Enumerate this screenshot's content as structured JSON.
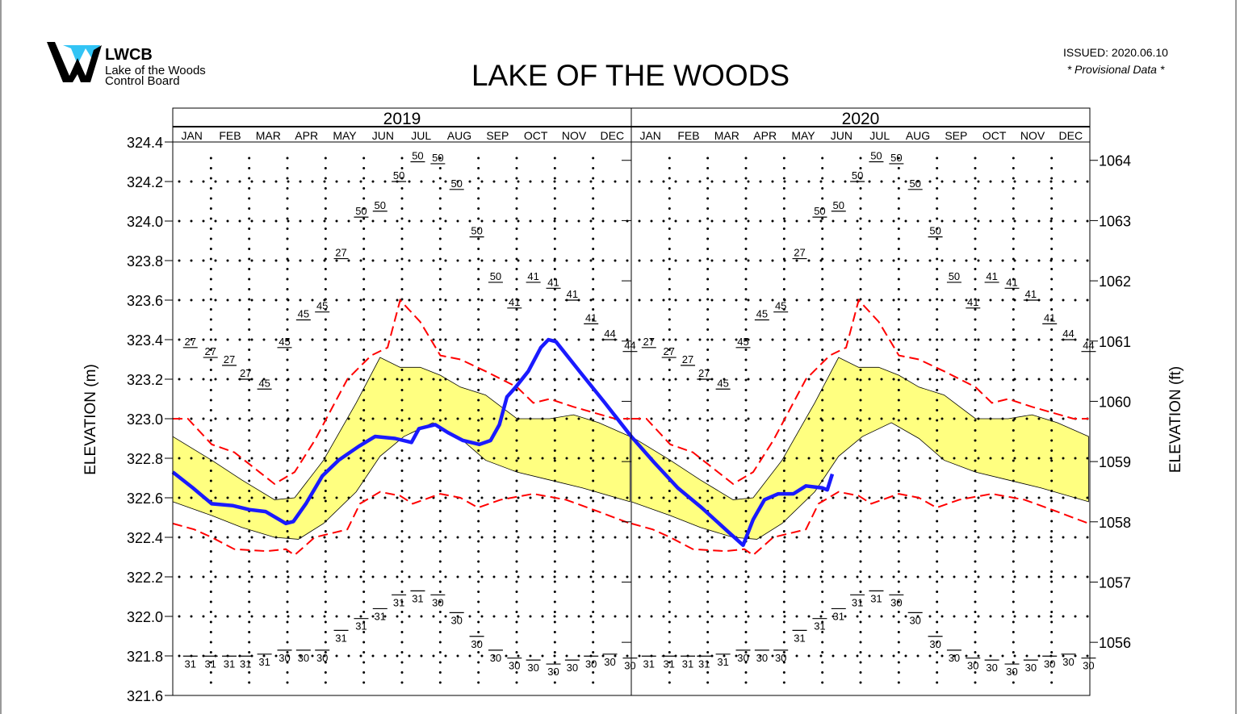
{
  "header": {
    "logo_acronym": "LWCB",
    "logo_line1": "Lake of the Woods",
    "logo_line2": "Control Board",
    "title": "LAKE OF THE WOODS",
    "issued": "ISSUED: 2020.06.10",
    "provisional": "* Provisional Data *"
  },
  "colors": {
    "observed": "#1a1aff",
    "extremes": "#ff0000",
    "band": "#ffff80",
    "logo_accent": "#33c4f5"
  },
  "chart_data": {
    "type": "line",
    "title": "LAKE OF THE WOODS",
    "years": [
      "2019",
      "2020"
    ],
    "months": [
      "JAN",
      "FEB",
      "MAR",
      "APR",
      "MAY",
      "JUN",
      "JUL",
      "AUG",
      "SEP",
      "OCT",
      "NOV",
      "DEC"
    ],
    "ylabel": "ELEVATION (m)",
    "ylabel_right": "ELEVATION (ft)",
    "ylim": [
      321.6,
      324.4
    ],
    "yticks": [
      "324.4",
      "324.2",
      "324.0",
      "323.8",
      "323.6",
      "323.4",
      "323.2",
      "323.0",
      "322.8",
      "322.6",
      "322.4",
      "322.2",
      "322.0",
      "321.8",
      "321.6"
    ],
    "yticks_right": [
      "1064",
      "1063",
      "1062",
      "1061",
      "1060",
      "1059",
      "1058",
      "1057",
      "1056"
    ],
    "grid": "dotted",
    "observed": [
      [
        "2019-01-01",
        322.73
      ],
      [
        "2019-01-17",
        322.65
      ],
      [
        "2019-02-01",
        322.57
      ],
      [
        "2019-02-18",
        322.56
      ],
      [
        "2019-03-03",
        322.54
      ],
      [
        "2019-03-16",
        322.53
      ],
      [
        "2019-04-01",
        322.47
      ],
      [
        "2019-04-07",
        322.48
      ],
      [
        "2019-04-17",
        322.57
      ],
      [
        "2019-04-30",
        322.71
      ],
      [
        "2019-05-13",
        322.79
      ],
      [
        "2019-05-29",
        322.86
      ],
      [
        "2019-06-11",
        322.91
      ],
      [
        "2019-06-27",
        322.9
      ],
      [
        "2019-07-10",
        322.88
      ],
      [
        "2019-07-16",
        322.95
      ],
      [
        "2019-07-29",
        322.97
      ],
      [
        "2019-08-08",
        322.93
      ],
      [
        "2019-08-20",
        322.89
      ],
      [
        "2019-09-02",
        322.87
      ],
      [
        "2019-09-11",
        322.89
      ],
      [
        "2019-09-18",
        322.97
      ],
      [
        "2019-09-24",
        323.11
      ],
      [
        "2019-10-01",
        323.16
      ],
      [
        "2019-10-11",
        323.24
      ],
      [
        "2019-10-21",
        323.36
      ],
      [
        "2019-10-27",
        323.4
      ],
      [
        "2019-11-02",
        323.39
      ],
      [
        "2019-11-22",
        323.23
      ],
      [
        "2019-12-11",
        323.08
      ],
      [
        "2020-01-01",
        322.91
      ],
      [
        "2020-01-19",
        322.78
      ],
      [
        "2020-02-07",
        322.65
      ],
      [
        "2020-02-26",
        322.55
      ],
      [
        "2020-03-17",
        322.44
      ],
      [
        "2020-03-31",
        322.36
      ],
      [
        "2020-04-08",
        322.49
      ],
      [
        "2020-04-17",
        322.59
      ],
      [
        "2020-04-28",
        322.62
      ],
      [
        "2020-05-10",
        322.62
      ],
      [
        "2020-05-20",
        322.66
      ],
      [
        "2020-06-02",
        322.65
      ],
      [
        "2020-06-06",
        322.64
      ],
      [
        "2020-06-10",
        322.72
      ]
    ],
    "annual_max": [
      [
        "01-01",
        323.0
      ],
      [
        "01-13",
        323.0
      ],
      [
        "02-01",
        322.87
      ],
      [
        "02-19",
        322.83
      ],
      [
        "03-23",
        322.67
      ],
      [
        "04-08",
        322.73
      ],
      [
        "04-24",
        322.89
      ],
      [
        "05-20",
        323.2
      ],
      [
        "06-08",
        323.32
      ],
      [
        "06-21",
        323.36
      ],
      [
        "07-01",
        323.6
      ],
      [
        "07-17",
        323.49
      ],
      [
        "08-02",
        323.32
      ],
      [
        "08-18",
        323.3
      ],
      [
        "09-07",
        323.24
      ],
      [
        "10-02",
        323.16
      ],
      [
        "10-15",
        323.08
      ],
      [
        "10-28",
        323.1
      ],
      [
        "11-16",
        323.06
      ],
      [
        "12-19",
        323.0
      ],
      [
        "12-31",
        323.0
      ]
    ],
    "annual_min": [
      [
        "01-01",
        322.47
      ],
      [
        "01-18",
        322.44
      ],
      [
        "02-01",
        322.4
      ],
      [
        "02-19",
        322.34
      ],
      [
        "03-17",
        322.33
      ],
      [
        "04-01",
        322.34
      ],
      [
        "04-08",
        322.31
      ],
      [
        "04-24",
        322.4
      ],
      [
        "05-20",
        322.44
      ],
      [
        "05-30",
        322.57
      ],
      [
        "06-15",
        322.63
      ],
      [
        "07-01",
        322.61
      ],
      [
        "07-11",
        322.57
      ],
      [
        "08-02",
        322.62
      ],
      [
        "08-18",
        322.6
      ],
      [
        "09-01",
        322.55
      ],
      [
        "09-19",
        322.59
      ],
      [
        "10-15",
        322.62
      ],
      [
        "11-10",
        322.59
      ],
      [
        "12-06",
        322.53
      ],
      [
        "12-31",
        322.47
      ]
    ],
    "band_upper": [
      [
        "01-01",
        322.91
      ],
      [
        "02-01",
        322.79
      ],
      [
        "02-25",
        322.69
      ],
      [
        "03-23",
        322.59
      ],
      [
        "04-08",
        322.6
      ],
      [
        "05-01",
        322.79
      ],
      [
        "05-27",
        323.08
      ],
      [
        "06-15",
        323.31
      ],
      [
        "07-01",
        323.26
      ],
      [
        "07-17",
        323.26
      ],
      [
        "08-02",
        323.22
      ],
      [
        "08-18",
        323.16
      ],
      [
        "09-07",
        323.12
      ],
      [
        "10-02",
        323.0
      ],
      [
        "10-28",
        323.0
      ],
      [
        "11-16",
        323.02
      ],
      [
        "12-06",
        322.98
      ],
      [
        "12-31",
        322.91
      ]
    ],
    "band_lower": [
      [
        "01-01",
        322.58
      ],
      [
        "02-01",
        322.51
      ],
      [
        "02-25",
        322.45
      ],
      [
        "03-23",
        322.4
      ],
      [
        "04-11",
        322.39
      ],
      [
        "05-01",
        322.47
      ],
      [
        "05-27",
        322.63
      ],
      [
        "06-15",
        322.81
      ],
      [
        "07-04",
        322.91
      ],
      [
        "07-27",
        322.98
      ],
      [
        "08-18",
        322.9
      ],
      [
        "09-07",
        322.79
      ],
      [
        "10-02",
        322.73
      ],
      [
        "10-28",
        322.69
      ],
      [
        "11-23",
        322.65
      ],
      [
        "12-31",
        322.58
      ]
    ],
    "max_labels": [
      [
        "01-15",
        323.36,
        "27"
      ],
      [
        "01-31",
        323.31,
        "27"
      ],
      [
        "02-15",
        323.27,
        "27"
      ],
      [
        "02-28",
        323.2,
        "27"
      ],
      [
        "03-15",
        323.15,
        "45"
      ],
      [
        "03-31",
        323.36,
        "45"
      ],
      [
        "04-15",
        323.5,
        "45"
      ],
      [
        "04-30",
        323.54,
        "45"
      ],
      [
        "05-15",
        323.81,
        "27"
      ],
      [
        "05-31",
        324.02,
        "50"
      ],
      [
        "06-15",
        324.05,
        "50"
      ],
      [
        "06-30",
        324.2,
        "50"
      ],
      [
        "07-15",
        324.3,
        "50"
      ],
      [
        "07-31",
        324.29,
        "50"
      ],
      [
        "08-15",
        324.16,
        "50"
      ],
      [
        "08-31",
        323.92,
        "50"
      ],
      [
        "09-15",
        323.69,
        "50"
      ],
      [
        "09-30",
        323.56,
        "41"
      ],
      [
        "10-15",
        323.69,
        "41"
      ],
      [
        "10-31",
        323.66,
        "41"
      ],
      [
        "11-15",
        323.6,
        "41"
      ],
      [
        "11-30",
        323.48,
        "41"
      ],
      [
        "12-15",
        323.4,
        "44"
      ],
      [
        "12-31",
        323.34,
        "44"
      ]
    ],
    "min_labels": [
      [
        "01-15",
        321.75,
        "31"
      ],
      [
        "01-31",
        321.75,
        "31"
      ],
      [
        "02-15",
        321.75,
        "31"
      ],
      [
        "02-28",
        321.75,
        "31"
      ],
      [
        "03-15",
        321.76,
        "31"
      ],
      [
        "03-31",
        321.78,
        "30"
      ],
      [
        "04-15",
        321.78,
        "30"
      ],
      [
        "04-30",
        321.78,
        "30"
      ],
      [
        "05-15",
        321.88,
        "31"
      ],
      [
        "05-31",
        321.94,
        "31"
      ],
      [
        "06-15",
        321.99,
        "31"
      ],
      [
        "06-30",
        322.06,
        "31"
      ],
      [
        "07-15",
        322.08,
        "31"
      ],
      [
        "07-31",
        322.06,
        "30"
      ],
      [
        "08-15",
        321.97,
        "30"
      ],
      [
        "08-31",
        321.85,
        "30"
      ],
      [
        "09-15",
        321.78,
        "30"
      ],
      [
        "09-30",
        321.74,
        "30"
      ],
      [
        "10-15",
        321.73,
        "30"
      ],
      [
        "10-31",
        321.71,
        "30"
      ],
      [
        "11-15",
        321.73,
        "30"
      ],
      [
        "11-30",
        321.75,
        "30"
      ],
      [
        "12-15",
        321.76,
        "30"
      ],
      [
        "12-31",
        321.74,
        "30"
      ]
    ]
  }
}
